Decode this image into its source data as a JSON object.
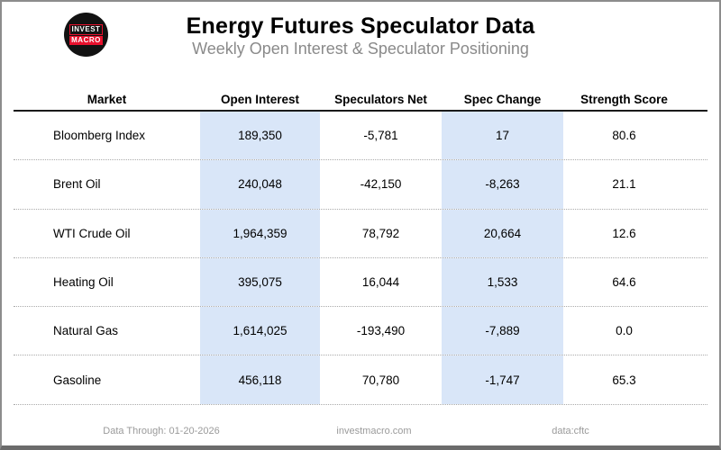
{
  "header": {
    "logo": {
      "line1": "INVEST",
      "line2": "MACRO"
    },
    "title": "Energy Futures Speculator Data",
    "subtitle": "Weekly Open Interest & Speculator Positioning"
  },
  "table": {
    "columns": [
      "Market",
      "Open Interest",
      "Speculators Net",
      "Spec Change",
      "Strength Score"
    ],
    "rows": [
      {
        "market": "Bloomberg Index",
        "open_interest": "189,350",
        "speculators_net": "-5,781",
        "spec_change": "17",
        "strength_score": "80.6"
      },
      {
        "market": "Brent Oil",
        "open_interest": "240,048",
        "speculators_net": "-42,150",
        "spec_change": "-8,263",
        "strength_score": "21.1"
      },
      {
        "market": "WTI Crude Oil",
        "open_interest": "1,964,359",
        "speculators_net": "78,792",
        "spec_change": "20,664",
        "strength_score": "12.6"
      },
      {
        "market": "Heating Oil",
        "open_interest": "395,075",
        "speculators_net": "16,044",
        "spec_change": "1,533",
        "strength_score": "64.6"
      },
      {
        "market": "Natural Gas",
        "open_interest": "1,614,025",
        "speculators_net": "-193,490",
        "spec_change": "-7,889",
        "strength_score": "0.0"
      },
      {
        "market": "Gasoline",
        "open_interest": "456,118",
        "speculators_net": "70,780",
        "spec_change": "-1,747",
        "strength_score": "65.3"
      }
    ]
  },
  "footer": {
    "data_through": "Data Through: 01-20-2026",
    "website": "investmacro.com",
    "source": "data:cftc"
  },
  "colors": {
    "highlight_column": "#d9e6f8",
    "logo_red": "#e8112d",
    "subtitle_gray": "#8a8a8a"
  },
  "chart_data": {
    "type": "table",
    "title": "Energy Futures Speculator Data",
    "subtitle": "Weekly Open Interest & Speculator Positioning",
    "columns": [
      "Market",
      "Open Interest",
      "Speculators Net",
      "Spec Change",
      "Strength Score"
    ],
    "rows": [
      [
        "Bloomberg Index",
        189350,
        -5781,
        17,
        80.6
      ],
      [
        "Brent Oil",
        240048,
        -42150,
        -8263,
        21.1
      ],
      [
        "WTI Crude Oil",
        1964359,
        78792,
        20664,
        12.6
      ],
      [
        "Heating Oil",
        395075,
        16044,
        1533,
        64.6
      ],
      [
        "Natural Gas",
        1614025,
        -193490,
        -7889,
        0.0
      ],
      [
        "Gasoline",
        456118,
        70780,
        -1747,
        65.3
      ]
    ],
    "highlighted_columns": [
      "Open Interest",
      "Spec Change"
    ],
    "source": "data:cftc",
    "data_through": "01-20-2026"
  }
}
